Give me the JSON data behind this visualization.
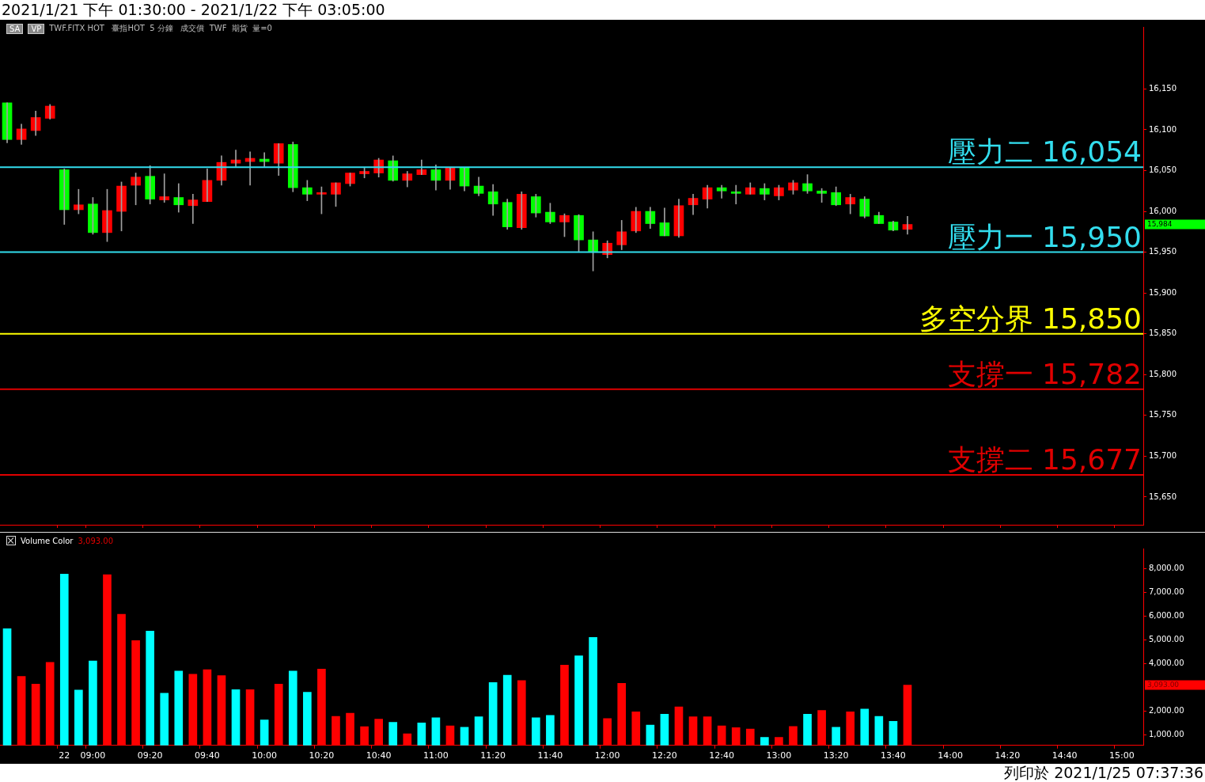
{
  "chart_data": [
    {
      "type": "candlestick",
      "title": "2021/1/21 下午 01:30:00 - 2021/1/22 下午 03:05:00",
      "subtitle": "TWF.FITX HOT   臺指HOT  5 分鐘   成交價  TWF  期貨  量=0",
      "ohlc": [
        [
          16133,
          16133,
          16084,
          16088
        ],
        [
          16088,
          16107,
          16082,
          16101
        ],
        [
          16099,
          16123,
          16093,
          16115
        ],
        [
          16114,
          16131,
          16113,
          16129
        ],
        [
          16051,
          16052,
          15984,
          16002
        ],
        [
          16002,
          16027,
          15997,
          16008
        ],
        [
          16009,
          16017,
          15972,
          15974
        ],
        [
          15974,
          16027,
          15963,
          16001
        ],
        [
          16000,
          16036,
          15976,
          16031
        ],
        [
          16032,
          16047,
          16008,
          16042
        ],
        [
          16043,
          16056,
          16009,
          16015
        ],
        [
          16014,
          16046,
          16011,
          16018
        ],
        [
          16017,
          16034,
          15999,
          16008
        ],
        [
          16007,
          16021,
          15985,
          16014
        ],
        [
          16012,
          16052,
          16012,
          16038
        ],
        [
          16038,
          16068,
          16032,
          16060
        ],
        [
          16059,
          16075,
          16055,
          16063
        ],
        [
          16061,
          16073,
          16032,
          16065
        ],
        [
          16064,
          16072,
          16055,
          16061
        ],
        [
          16059,
          16083,
          16044,
          16083
        ],
        [
          16082,
          16085,
          16024,
          16029
        ],
        [
          16029,
          16038,
          16013,
          16021
        ],
        [
          16021,
          16030,
          15997,
          16023
        ],
        [
          16021,
          16035,
          16006,
          16035
        ],
        [
          16034,
          16047,
          16031,
          16047
        ],
        [
          16046,
          16053,
          16041,
          16049
        ],
        [
          16047,
          16065,
          16042,
          16063
        ],
        [
          16062,
          16068,
          16037,
          16038
        ],
        [
          16038,
          16049,
          16030,
          16046
        ],
        [
          16045,
          16063,
          16045,
          16051
        ],
        [
          16051,
          16057,
          16026,
          16038
        ],
        [
          16038,
          16054,
          16027,
          16054
        ],
        [
          16054,
          16054,
          16025,
          16031
        ],
        [
          16031,
          16042,
          16019,
          16022
        ],
        [
          16024,
          16033,
          15995,
          16009
        ],
        [
          16011,
          16015,
          15978,
          15981
        ],
        [
          15980,
          16024,
          15978,
          16021
        ],
        [
          16018,
          16021,
          15993,
          15998
        ],
        [
          15999,
          16010,
          15985,
          15987
        ],
        [
          15987,
          15997,
          15969,
          15995
        ],
        [
          15995,
          15996,
          15951,
          15965
        ],
        [
          15965,
          15975,
          15927,
          15951
        ],
        [
          15947,
          15964,
          15943,
          15961
        ],
        [
          15959,
          15989,
          15953,
          15975
        ],
        [
          15976,
          16005,
          15974,
          16000
        ],
        [
          16000,
          16005,
          15979,
          15985
        ],
        [
          15986,
          16004,
          15970,
          15970
        ],
        [
          15970,
          16015,
          15968,
          16007
        ],
        [
          16008,
          16021,
          15996,
          16016
        ],
        [
          16015,
          16032,
          16004,
          16029
        ],
        [
          16029,
          16032,
          16016,
          16025
        ],
        [
          16024,
          16032,
          16009,
          16022
        ],
        [
          16021,
          16035,
          16021,
          16029
        ],
        [
          16028,
          16034,
          16014,
          16021
        ],
        [
          16019,
          16032,
          16014,
          16029
        ],
        [
          16026,
          16038,
          16021,
          16035
        ],
        [
          16034,
          16045,
          16022,
          16025
        ],
        [
          16025,
          16028,
          16011,
          16022
        ],
        [
          16023,
          16030,
          16007,
          16008
        ],
        [
          16009,
          16021,
          15997,
          16017
        ],
        [
          16015,
          16018,
          15992,
          15994
        ],
        [
          15995,
          15999,
          15985,
          15985
        ],
        [
          15987,
          15988,
          15976,
          15977
        ],
        [
          15978,
          15994,
          15972,
          15984
        ],
        null,
        null,
        null,
        null,
        null,
        null,
        null,
        null,
        null,
        null,
        null,
        null,
        null,
        null,
        null,
        null
      ],
      "colors": [
        "#00ff00",
        "#ff0000",
        "#ff0000",
        "#ff0000",
        "#00ff00",
        "#ff0000",
        "#00ff00",
        "#ff0000",
        "#ff0000",
        "#ff0000",
        "#00ff00",
        "#ff0000",
        "#00ff00",
        "#ff0000",
        "#ff0000",
        "#ff0000",
        "#ff0000",
        "#ff0000",
        "#00ff00",
        "#ff0000",
        "#00ff00",
        "#00ff00",
        "#ff0000",
        "#ff0000",
        "#ff0000",
        "#ff0000",
        "#ff0000",
        "#00ff00",
        "#ff0000",
        "#ff0000",
        "#00ff00",
        "#ff0000",
        "#00ff00",
        "#00ff00",
        "#00ff00",
        "#00ff00",
        "#ff0000",
        "#00ff00",
        "#00ff00",
        "#ff0000",
        "#00ff00",
        "#00ff00",
        "#ff0000",
        "#ff0000",
        "#ff0000",
        "#00ff00",
        "#00ff00",
        "#ff0000",
        "#ff0000",
        "#ff0000",
        "#00ff00",
        "#00ff00",
        "#ff0000",
        "#00ff00",
        "#ff0000",
        "#ff0000",
        "#00ff00",
        "#00ff00",
        "#00ff00",
        "#ff0000",
        "#00ff00",
        "#00ff00",
        "#00ff00",
        "#ff0000",
        null,
        null,
        null,
        null,
        null,
        null,
        null,
        null,
        null,
        null,
        null,
        null,
        null,
        null,
        null,
        null
      ],
      "ylim": [
        15616,
        16226
      ],
      "yticks": [
        {
          "value": 15650,
          "label": "15,650"
        },
        {
          "value": 15700,
          "label": "15,700"
        },
        {
          "value": 15750,
          "label": "15,750"
        },
        {
          "value": 15800,
          "label": "15,800"
        },
        {
          "value": 15850,
          "label": "15,850"
        },
        {
          "value": 15900,
          "label": "15,900"
        },
        {
          "value": 15950,
          "label": "15,950"
        },
        {
          "value": 16000,
          "label": "16,000"
        },
        {
          "value": 16050,
          "label": "16,050"
        },
        {
          "value": 16100,
          "label": "16,100"
        },
        {
          "value": 16150,
          "label": "16,150"
        }
      ],
      "tick_labels": "y",
      "ref_lines": [
        {
          "axis": "y",
          "value": 16054,
          "label": "壓力二 16,054",
          "color": "#33ddee"
        },
        {
          "axis": "y",
          "value": 15950,
          "label": "壓力一 15,950",
          "color": "#33ddee"
        },
        {
          "axis": "y",
          "value": 15850,
          "label": "多空分界 15,850",
          "color": "#ffff00"
        },
        {
          "axis": "y",
          "value": 15782,
          "label": "支撐一 15,782",
          "color": "#e00000"
        },
        {
          "axis": "y",
          "value": 15677,
          "label": "支撐二 15,677",
          "color": "#e00000"
        }
      ],
      "annotations": [
        "SA",
        "VP",
        "15,984"
      ]
    },
    {
      "type": "bar",
      "title": "Volume Color",
      "categories": [
        null,
        null,
        null,
        null,
        "22",
        null,
        "09:00",
        null,
        null,
        null,
        "09:20",
        null,
        null,
        null,
        "09:40",
        null,
        null,
        null,
        "10:00",
        null,
        null,
        null,
        "10:20",
        null,
        null,
        null,
        "10:40",
        null,
        null,
        null,
        "11:00",
        null,
        null,
        null,
        "11:20",
        null,
        null,
        null,
        "11:40",
        null,
        null,
        null,
        "12:00",
        null,
        null,
        null,
        "12:20",
        null,
        null,
        null,
        "12:40",
        null,
        null,
        null,
        "13:00",
        null,
        null,
        null,
        "13:20",
        null,
        null,
        null,
        "13:40",
        null,
        null,
        null,
        "14:00",
        null,
        null,
        null,
        "14:20",
        null,
        null,
        null,
        "14:40",
        null,
        null,
        null,
        "15:00",
        null
      ],
      "values": [
        5470,
        3460,
        3130,
        4050,
        7780,
        2880,
        4110,
        7750,
        6080,
        4970,
        5370,
        2750,
        3680,
        3550,
        3740,
        3490,
        2900,
        2900,
        1620,
        3130,
        3680,
        2790,
        3770,
        1770,
        1900,
        1330,
        1650,
        1520,
        1030,
        1490,
        1710,
        1370,
        1310,
        1750,
        3200,
        3510,
        3280,
        1710,
        1810,
        3930,
        4330,
        5100,
        1680,
        3160,
        1960,
        1400,
        1860,
        2170,
        1750,
        1750,
        1370,
        1290,
        1230,
        880,
        880,
        1340,
        1860,
        2020,
        1310,
        1960,
        2080,
        1770,
        1560,
        3093,
        null,
        null,
        null,
        null,
        null,
        null,
        null,
        null,
        null,
        null,
        null,
        null,
        null,
        null,
        null,
        null
      ],
      "colors": [
        "#00ffff",
        "#ff0000",
        "#ff0000",
        "#ff0000",
        "#00ffff",
        "#00ffff",
        "#00ffff",
        "#ff0000",
        "#ff0000",
        "#ff0000",
        "#00ffff",
        "#00ffff",
        "#00ffff",
        "#ff0000",
        "#ff0000",
        "#ff0000",
        "#00ffff",
        "#ff0000",
        "#00ffff",
        "#ff0000",
        "#00ffff",
        "#00ffff",
        "#ff0000",
        "#ff0000",
        "#ff0000",
        "#ff0000",
        "#ff0000",
        "#00ffff",
        "#ff0000",
        "#00ffff",
        "#00ffff",
        "#ff0000",
        "#00ffff",
        "#00ffff",
        "#00ffff",
        "#00ffff",
        "#ff0000",
        "#00ffff",
        "#00ffff",
        "#ff0000",
        "#00ffff",
        "#00ffff",
        "#ff0000",
        "#ff0000",
        "#ff0000",
        "#00ffff",
        "#00ffff",
        "#ff0000",
        "#ff0000",
        "#ff0000",
        "#ff0000",
        "#ff0000",
        "#ff0000",
        "#00ffff",
        "#ff0000",
        "#ff0000",
        "#00ffff",
        "#ff0000",
        "#00ffff",
        "#ff0000",
        "#00ffff",
        "#00ffff",
        "#00ffff",
        "#ff0000",
        null,
        null,
        null,
        null,
        null,
        null,
        null,
        null,
        null,
        null,
        null,
        null,
        null,
        null,
        null,
        null
      ],
      "ylim": [
        540,
        8860
      ],
      "yticks": [
        {
          "value": 1000,
          "label": "1,000.00"
        },
        {
          "value": 2000,
          "label": "2,000.00"
        },
        {
          "value": 4000,
          "label": "4,000.00"
        },
        {
          "value": 5000,
          "label": "5,000.00"
        },
        {
          "value": 6000,
          "label": "6,000.00"
        },
        {
          "value": 7000,
          "label": "7,000.00"
        },
        {
          "value": 8000,
          "label": "8,000.00"
        }
      ],
      "annotations": [
        "3,093.00",
        "列印於 2021/1/25 07:37:36",
        "3,093.00"
      ]
    }
  ]
}
